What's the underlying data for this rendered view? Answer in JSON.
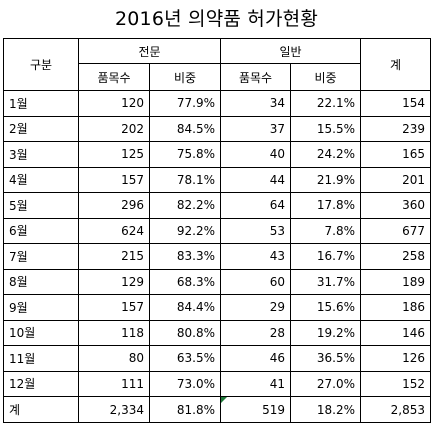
{
  "title": "2016년 의약품 허가현황",
  "header": {
    "category": "구분",
    "group_professional": "전문",
    "group_general": "일반",
    "total": "계",
    "count": "품목수",
    "ratio": "비중"
  },
  "rows": [
    {
      "month": "1월",
      "pro_count": "120",
      "pro_ratio": "77.9%",
      "gen_count": "34",
      "gen_ratio": "22.1%",
      "total": "154"
    },
    {
      "month": "2월",
      "pro_count": "202",
      "pro_ratio": "84.5%",
      "gen_count": "37",
      "gen_ratio": "15.5%",
      "total": "239"
    },
    {
      "month": "3월",
      "pro_count": "125",
      "pro_ratio": "75.8%",
      "gen_count": "40",
      "gen_ratio": "24.2%",
      "total": "165"
    },
    {
      "month": "4월",
      "pro_count": "157",
      "pro_ratio": "78.1%",
      "gen_count": "44",
      "gen_ratio": "21.9%",
      "total": "201"
    },
    {
      "month": "5월",
      "pro_count": "296",
      "pro_ratio": "82.2%",
      "gen_count": "64",
      "gen_ratio": "17.8%",
      "total": "360"
    },
    {
      "month": "6월",
      "pro_count": "624",
      "pro_ratio": "92.2%",
      "gen_count": "53",
      "gen_ratio": "7.8%",
      "total": "677"
    },
    {
      "month": "7월",
      "pro_count": "215",
      "pro_ratio": "83.3%",
      "gen_count": "43",
      "gen_ratio": "16.7%",
      "total": "258"
    },
    {
      "month": "8월",
      "pro_count": "129",
      "pro_ratio": "68.3%",
      "gen_count": "60",
      "gen_ratio": "31.7%",
      "total": "189"
    },
    {
      "month": "9월",
      "pro_count": "157",
      "pro_ratio": "84.4%",
      "gen_count": "29",
      "gen_ratio": "15.6%",
      "total": "186"
    },
    {
      "month": "10월",
      "pro_count": "118",
      "pro_ratio": "80.8%",
      "gen_count": "28",
      "gen_ratio": "19.2%",
      "total": "146"
    },
    {
      "month": "11월",
      "pro_count": "80",
      "pro_ratio": "63.5%",
      "gen_count": "46",
      "gen_ratio": "36.5%",
      "total": "126"
    },
    {
      "month": "12월",
      "pro_count": "111",
      "pro_ratio": "73.0%",
      "gen_count": "41",
      "gen_ratio": "27.0%",
      "total": "152"
    }
  ],
  "totals": {
    "label": "계",
    "pro_count": "2,334",
    "pro_ratio": "81.8%",
    "gen_count": "519",
    "gen_ratio": "18.2%",
    "total": "2,853"
  }
}
